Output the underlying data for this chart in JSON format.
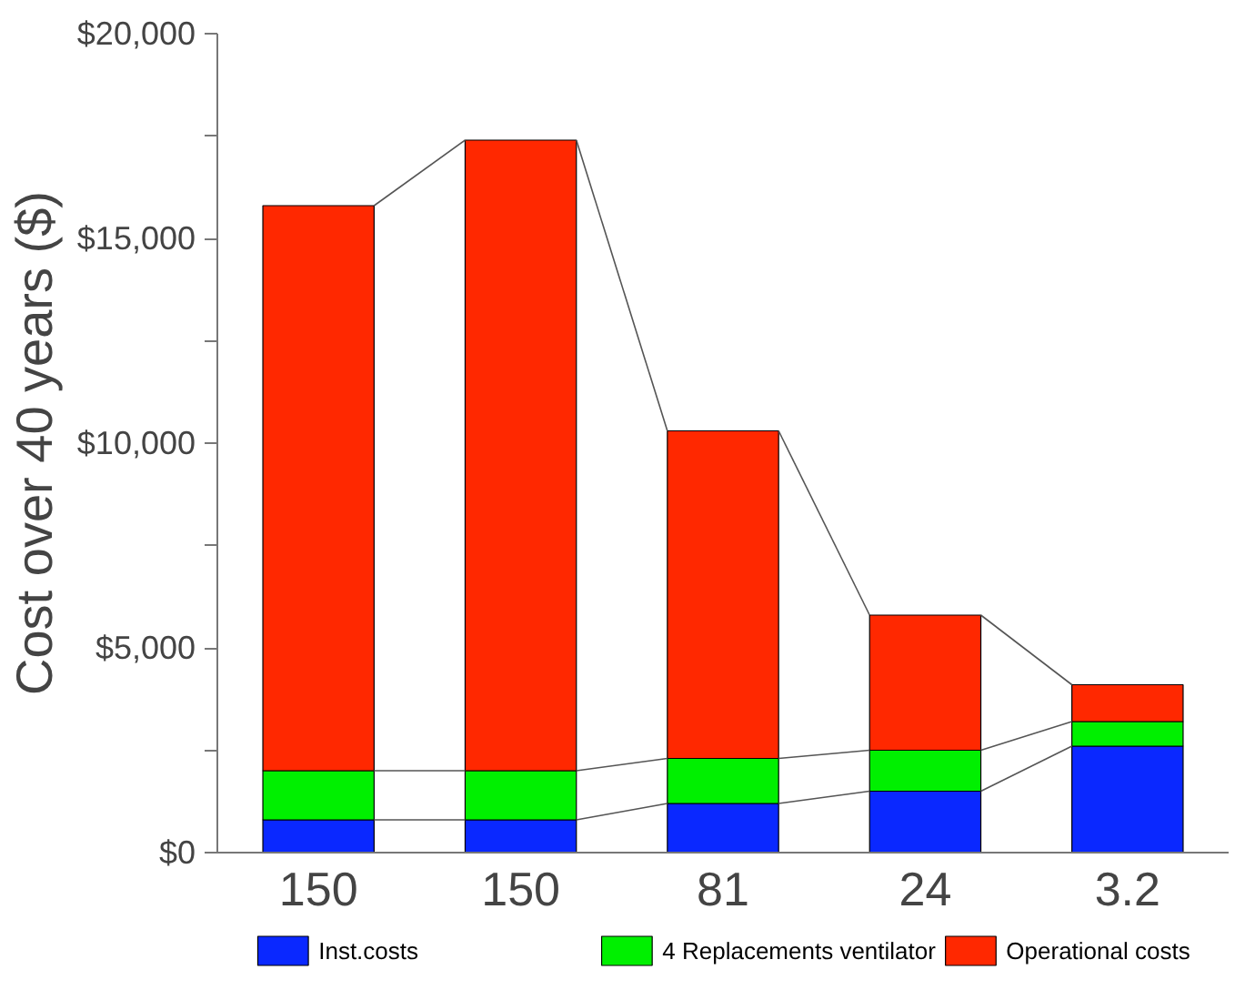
{
  "chart_data": {
    "type": "bar",
    "stacked": true,
    "ylabel": "Cost over 40 years ($)",
    "categories": [
      "150",
      "150",
      "81",
      "24",
      "3.2"
    ],
    "series": [
      {
        "name": "Inst.costs",
        "color": "#0a28ff",
        "values": [
          800,
          800,
          1200,
          1500,
          2600
        ]
      },
      {
        "name": "4 Replacements ventilator",
        "color": "#00f000",
        "values": [
          1200,
          1200,
          1100,
          1000,
          600
        ]
      },
      {
        "name": "Operational costs",
        "color": "#ff2800",
        "values": [
          13800,
          15400,
          8000,
          3300,
          900
        ]
      }
    ],
    "ylim": [
      0,
      20000
    ],
    "yticks": [
      {
        "value": 0,
        "label": "$0"
      },
      {
        "value": 2500,
        "label": null
      },
      {
        "value": 5000,
        "label": "$5,000"
      },
      {
        "value": 7500,
        "label": null
      },
      {
        "value": 10000,
        "label": "$10,000"
      },
      {
        "value": 12500,
        "label": null
      },
      {
        "value": 15000,
        "label": "$15,000"
      },
      {
        "value": 17500,
        "label": null
      },
      {
        "value": 20000,
        "label": "$20,000"
      }
    ],
    "grid": false,
    "legend": "bottom"
  }
}
